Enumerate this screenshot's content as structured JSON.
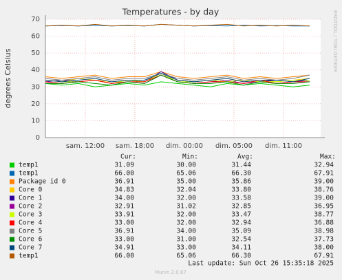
{
  "chart_data": {
    "type": "line",
    "title": "Temperatures - by day",
    "y_label": "degrees Celsius",
    "side_note": "RRDTOOL / TOBI OETIKER",
    "footer": "Munin 2.0.67",
    "last_update": "Last update: Sun Oct 26 15:35:18 2025",
    "columns": [
      "Cur:",
      "Min:",
      "Avg:",
      "Max:"
    ],
    "xlim": [
      0,
      33.33
    ],
    "ylim": [
      0,
      70
    ],
    "grid": true,
    "yticks": [
      0,
      10,
      20,
      30,
      40,
      50,
      60,
      70
    ],
    "xticks": [
      {
        "value": 4.83,
        "label": "sam. 12:00"
      },
      {
        "value": 10.83,
        "label": "sam. 18:00"
      },
      {
        "value": 16.83,
        "label": "dim. 00:00"
      },
      {
        "value": 22.83,
        "label": "dim. 05:00"
      },
      {
        "value": 28.83,
        "label": "dim. 11:00"
      }
    ],
    "x": [
      0,
      2,
      4,
      6,
      8,
      10,
      12,
      14,
      16,
      18,
      20,
      22,
      24,
      26,
      28,
      30,
      32
    ],
    "series": [
      {
        "name": "temp1",
        "color": "#00cc00",
        "stats": [
          "31.09",
          "30.00",
          "31.44",
          "32.94"
        ],
        "values": [
          32,
          31,
          32,
          30,
          31,
          32,
          31,
          33,
          32,
          31,
          30,
          32,
          31,
          32,
          31,
          30,
          31
        ]
      },
      {
        "name": "temp1",
        "color": "#0066b3",
        "stats": [
          "66.00",
          "65.06",
          "66.30",
          "67.91"
        ],
        "values": [
          66,
          66.3,
          66,
          66.5,
          66,
          66.3,
          66,
          67,
          66.5,
          66,
          66.3,
          66,
          66.5,
          66,
          66.3,
          66,
          66
        ]
      },
      {
        "name": "Package id 0",
        "color": "#ff8000",
        "stats": [
          "36.91",
          "35.00",
          "35.86",
          "39.00"
        ],
        "values": [
          36,
          35,
          36,
          37,
          35,
          36,
          36,
          39,
          36,
          35,
          36,
          37,
          35,
          36,
          35,
          36,
          37
        ]
      },
      {
        "name": "Core 0",
        "color": "#ffcc00",
        "stats": [
          "34.83",
          "32.04",
          "33.80",
          "38.76"
        ],
        "values": [
          34,
          33,
          35,
          34,
          33,
          34,
          33,
          38,
          34,
          33,
          34,
          35,
          33,
          34,
          33,
          34,
          35
        ]
      },
      {
        "name": "Core 1",
        "color": "#330099",
        "stats": [
          "34.00",
          "32.00",
          "33.58",
          "39.00"
        ],
        "values": [
          33,
          34,
          33,
          34,
          32,
          34,
          33,
          39,
          34,
          33,
          34,
          33,
          34,
          33,
          34,
          33,
          34
        ]
      },
      {
        "name": "Core 2",
        "color": "#990099",
        "stats": [
          "32.91",
          "31.02",
          "32.85",
          "36.95"
        ],
        "values": [
          33,
          32,
          33,
          34,
          32,
          33,
          32,
          37,
          33,
          32,
          33,
          34,
          32,
          33,
          32,
          33,
          33
        ]
      },
      {
        "name": "Core 3",
        "color": "#ccff00",
        "stats": [
          "33.91",
          "32.00",
          "33.47",
          "38.77"
        ],
        "values": [
          34,
          33,
          33,
          34,
          32,
          34,
          33,
          38,
          33,
          33,
          34,
          33,
          34,
          33,
          33,
          34,
          34
        ]
      },
      {
        "name": "Core 4",
        "color": "#ff0000",
        "stats": [
          "33.00",
          "32.00",
          "32.94",
          "36.88"
        ],
        "values": [
          33,
          32,
          33,
          34,
          32,
          33,
          33,
          37,
          33,
          32,
          33,
          33,
          32,
          34,
          32,
          33,
          33
        ]
      },
      {
        "name": "Core 5",
        "color": "#808080",
        "stats": [
          "36.91",
          "34.00",
          "35.09",
          "38.98"
        ],
        "values": [
          35,
          34,
          35,
          36,
          34,
          35,
          35,
          38,
          35,
          34,
          35,
          36,
          34,
          35,
          34,
          35,
          37
        ]
      },
      {
        "name": "Core 6",
        "color": "#008f00",
        "stats": [
          "33.00",
          "31.00",
          "32.54",
          "37.73"
        ],
        "values": [
          32,
          32,
          33,
          32,
          31,
          33,
          32,
          37,
          33,
          32,
          32,
          33,
          31,
          33,
          32,
          32,
          33
        ]
      },
      {
        "name": "Core 7",
        "color": "#00487d",
        "stats": [
          "34.91",
          "33.00",
          "34.11",
          "38.00"
        ],
        "values": [
          34,
          33,
          34,
          35,
          33,
          34,
          34,
          38,
          34,
          33,
          34,
          35,
          33,
          34,
          34,
          33,
          35
        ]
      },
      {
        "name": "temp1",
        "color": "#b35a00",
        "stats": [
          "66.00",
          "65.06",
          "66.30",
          "67.91"
        ],
        "values": [
          66,
          66.5,
          66,
          67,
          66,
          66.5,
          66,
          67,
          66.5,
          66,
          66.5,
          67,
          66,
          66.5,
          66,
          66.5,
          66
        ]
      }
    ]
  }
}
